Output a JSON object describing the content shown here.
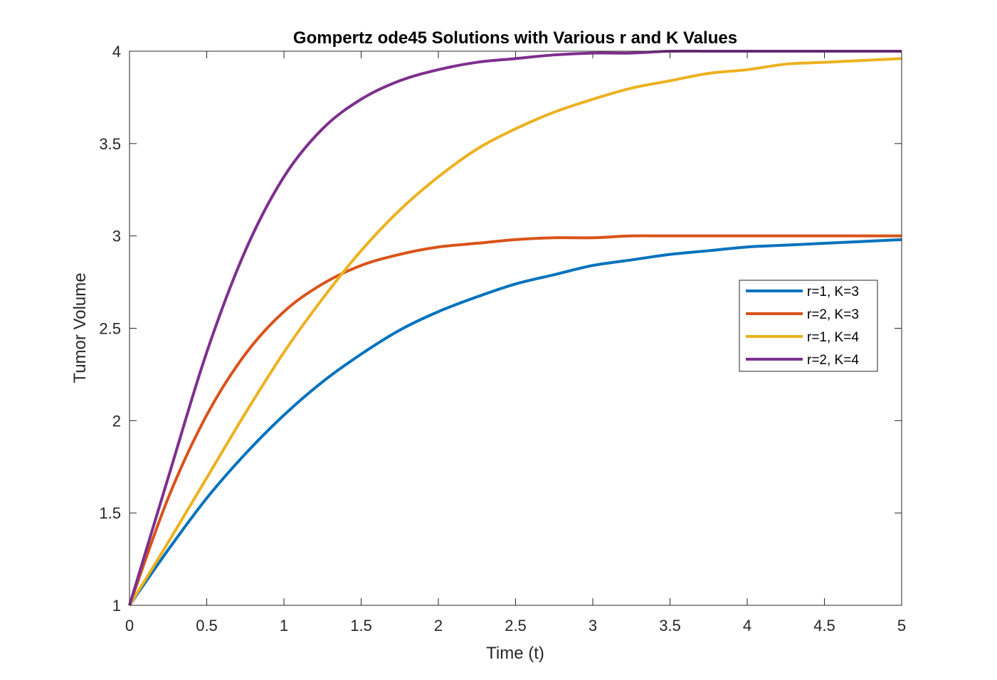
{
  "chart_data": {
    "type": "line",
    "title": "Gompertz ode45 Solutions with Various r and K Values",
    "xlabel": "Time (t)",
    "ylabel": "Tumor Volume",
    "xlim": [
      0,
      5
    ],
    "ylim": [
      1,
      4
    ],
    "xticks": [
      "0",
      "0.5",
      "1",
      "1.5",
      "2",
      "2.5",
      "3",
      "3.5",
      "4",
      "4.5",
      "5"
    ],
    "yticks": [
      "1",
      "1.5",
      "2",
      "2.5",
      "3",
      "3.5",
      "4"
    ],
    "grid": false,
    "legend_position": "right",
    "x": [
      0,
      0.25,
      0.5,
      0.75,
      1,
      1.25,
      1.5,
      1.75,
      2,
      2.25,
      2.5,
      2.75,
      3,
      3.25,
      3.5,
      3.75,
      4,
      4.25,
      4.5,
      4.75,
      5
    ],
    "series": [
      {
        "name": "r=1, K=3",
        "color": "#0072BD",
        "values": [
          1.0,
          1.3,
          1.58,
          1.82,
          2.03,
          2.21,
          2.36,
          2.49,
          2.59,
          2.67,
          2.74,
          2.79,
          2.84,
          2.87,
          2.9,
          2.92,
          2.94,
          2.95,
          2.96,
          2.97,
          2.98
        ]
      },
      {
        "name": "r=2, K=3",
        "color": "#D95319",
        "values": [
          1.0,
          1.58,
          2.03,
          2.36,
          2.59,
          2.74,
          2.84,
          2.9,
          2.94,
          2.96,
          2.98,
          2.99,
          2.99,
          3.0,
          3.0,
          3.0,
          3.0,
          3.0,
          3.0,
          3.0,
          3.0
        ]
      },
      {
        "name": "r=1, K=4",
        "color": "#EDB120",
        "values": [
          1.0,
          1.34,
          1.69,
          2.04,
          2.37,
          2.66,
          2.92,
          3.14,
          3.32,
          3.47,
          3.58,
          3.67,
          3.74,
          3.8,
          3.84,
          3.88,
          3.9,
          3.93,
          3.94,
          3.95,
          3.96
        ]
      },
      {
        "name": "r=2, K=4",
        "color": "#7E2F8E",
        "values": [
          1.0,
          1.69,
          2.37,
          2.92,
          3.32,
          3.58,
          3.74,
          3.84,
          3.9,
          3.94,
          3.96,
          3.98,
          3.99,
          3.99,
          4.0,
          4.0,
          4.0,
          4.0,
          4.0,
          4.0,
          4.0
        ]
      }
    ]
  }
}
